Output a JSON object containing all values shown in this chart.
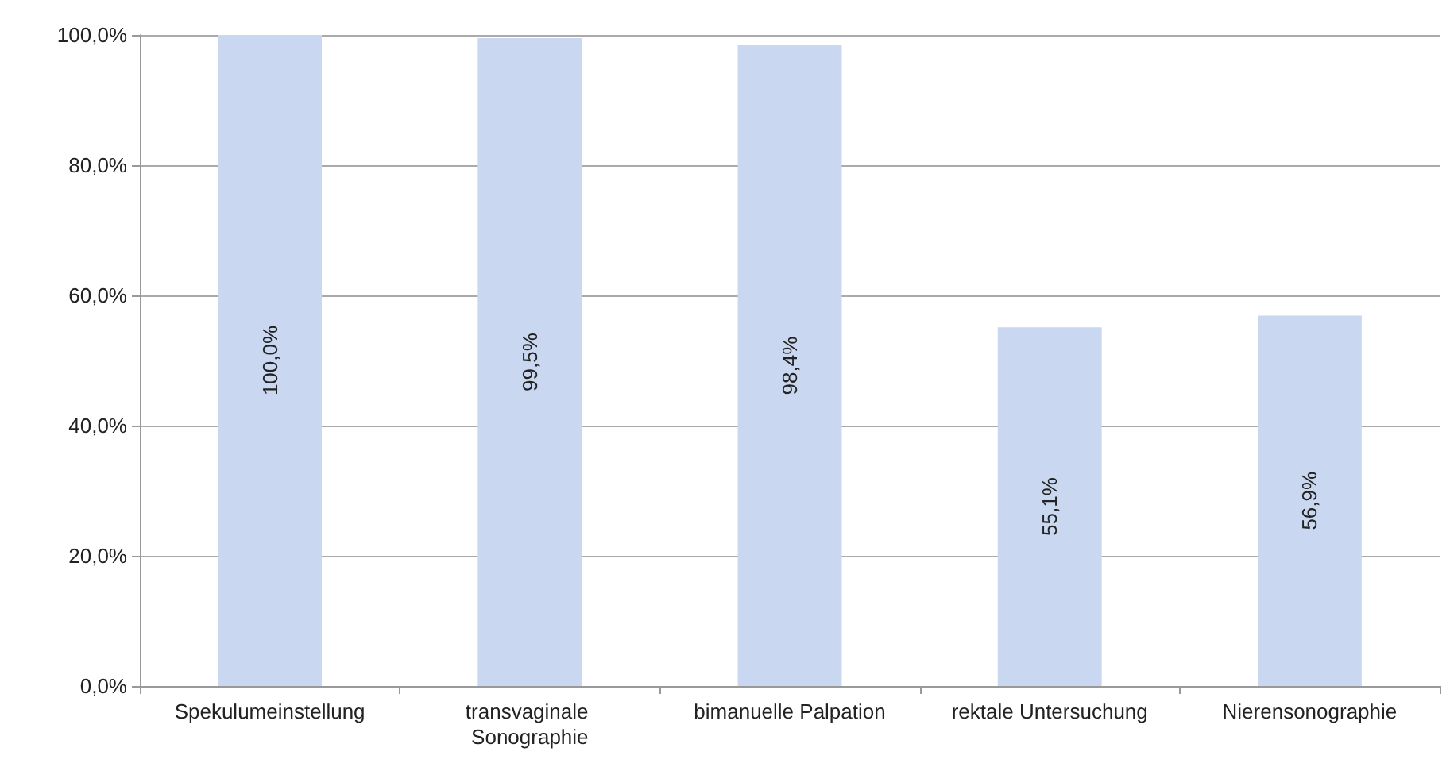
{
  "chart_data": {
    "type": "bar",
    "categories": [
      "Spekulumeinstellung",
      "transvaginale Sonographie",
      "bimanuelle Palpation",
      "rektale Untersuchung",
      "Nierensonographie"
    ],
    "values": [
      100.0,
      99.5,
      98.4,
      55.1,
      56.9
    ],
    "value_labels": [
      "100,0%",
      "99,5%",
      "98,4%",
      "55,1%",
      "56,9%"
    ],
    "color": "#c9d7f0",
    "ylim": [
      0,
      100
    ],
    "yticks": [
      {
        "value": 0,
        "label": "0,0%"
      },
      {
        "value": 20,
        "label": "20,0%"
      },
      {
        "value": 40,
        "label": "40,0%"
      },
      {
        "value": 60,
        "label": "60,0%"
      },
      {
        "value": 80,
        "label": "80,0%"
      },
      {
        "value": 100,
        "label": "100,0%"
      }
    ],
    "grid": "y"
  }
}
